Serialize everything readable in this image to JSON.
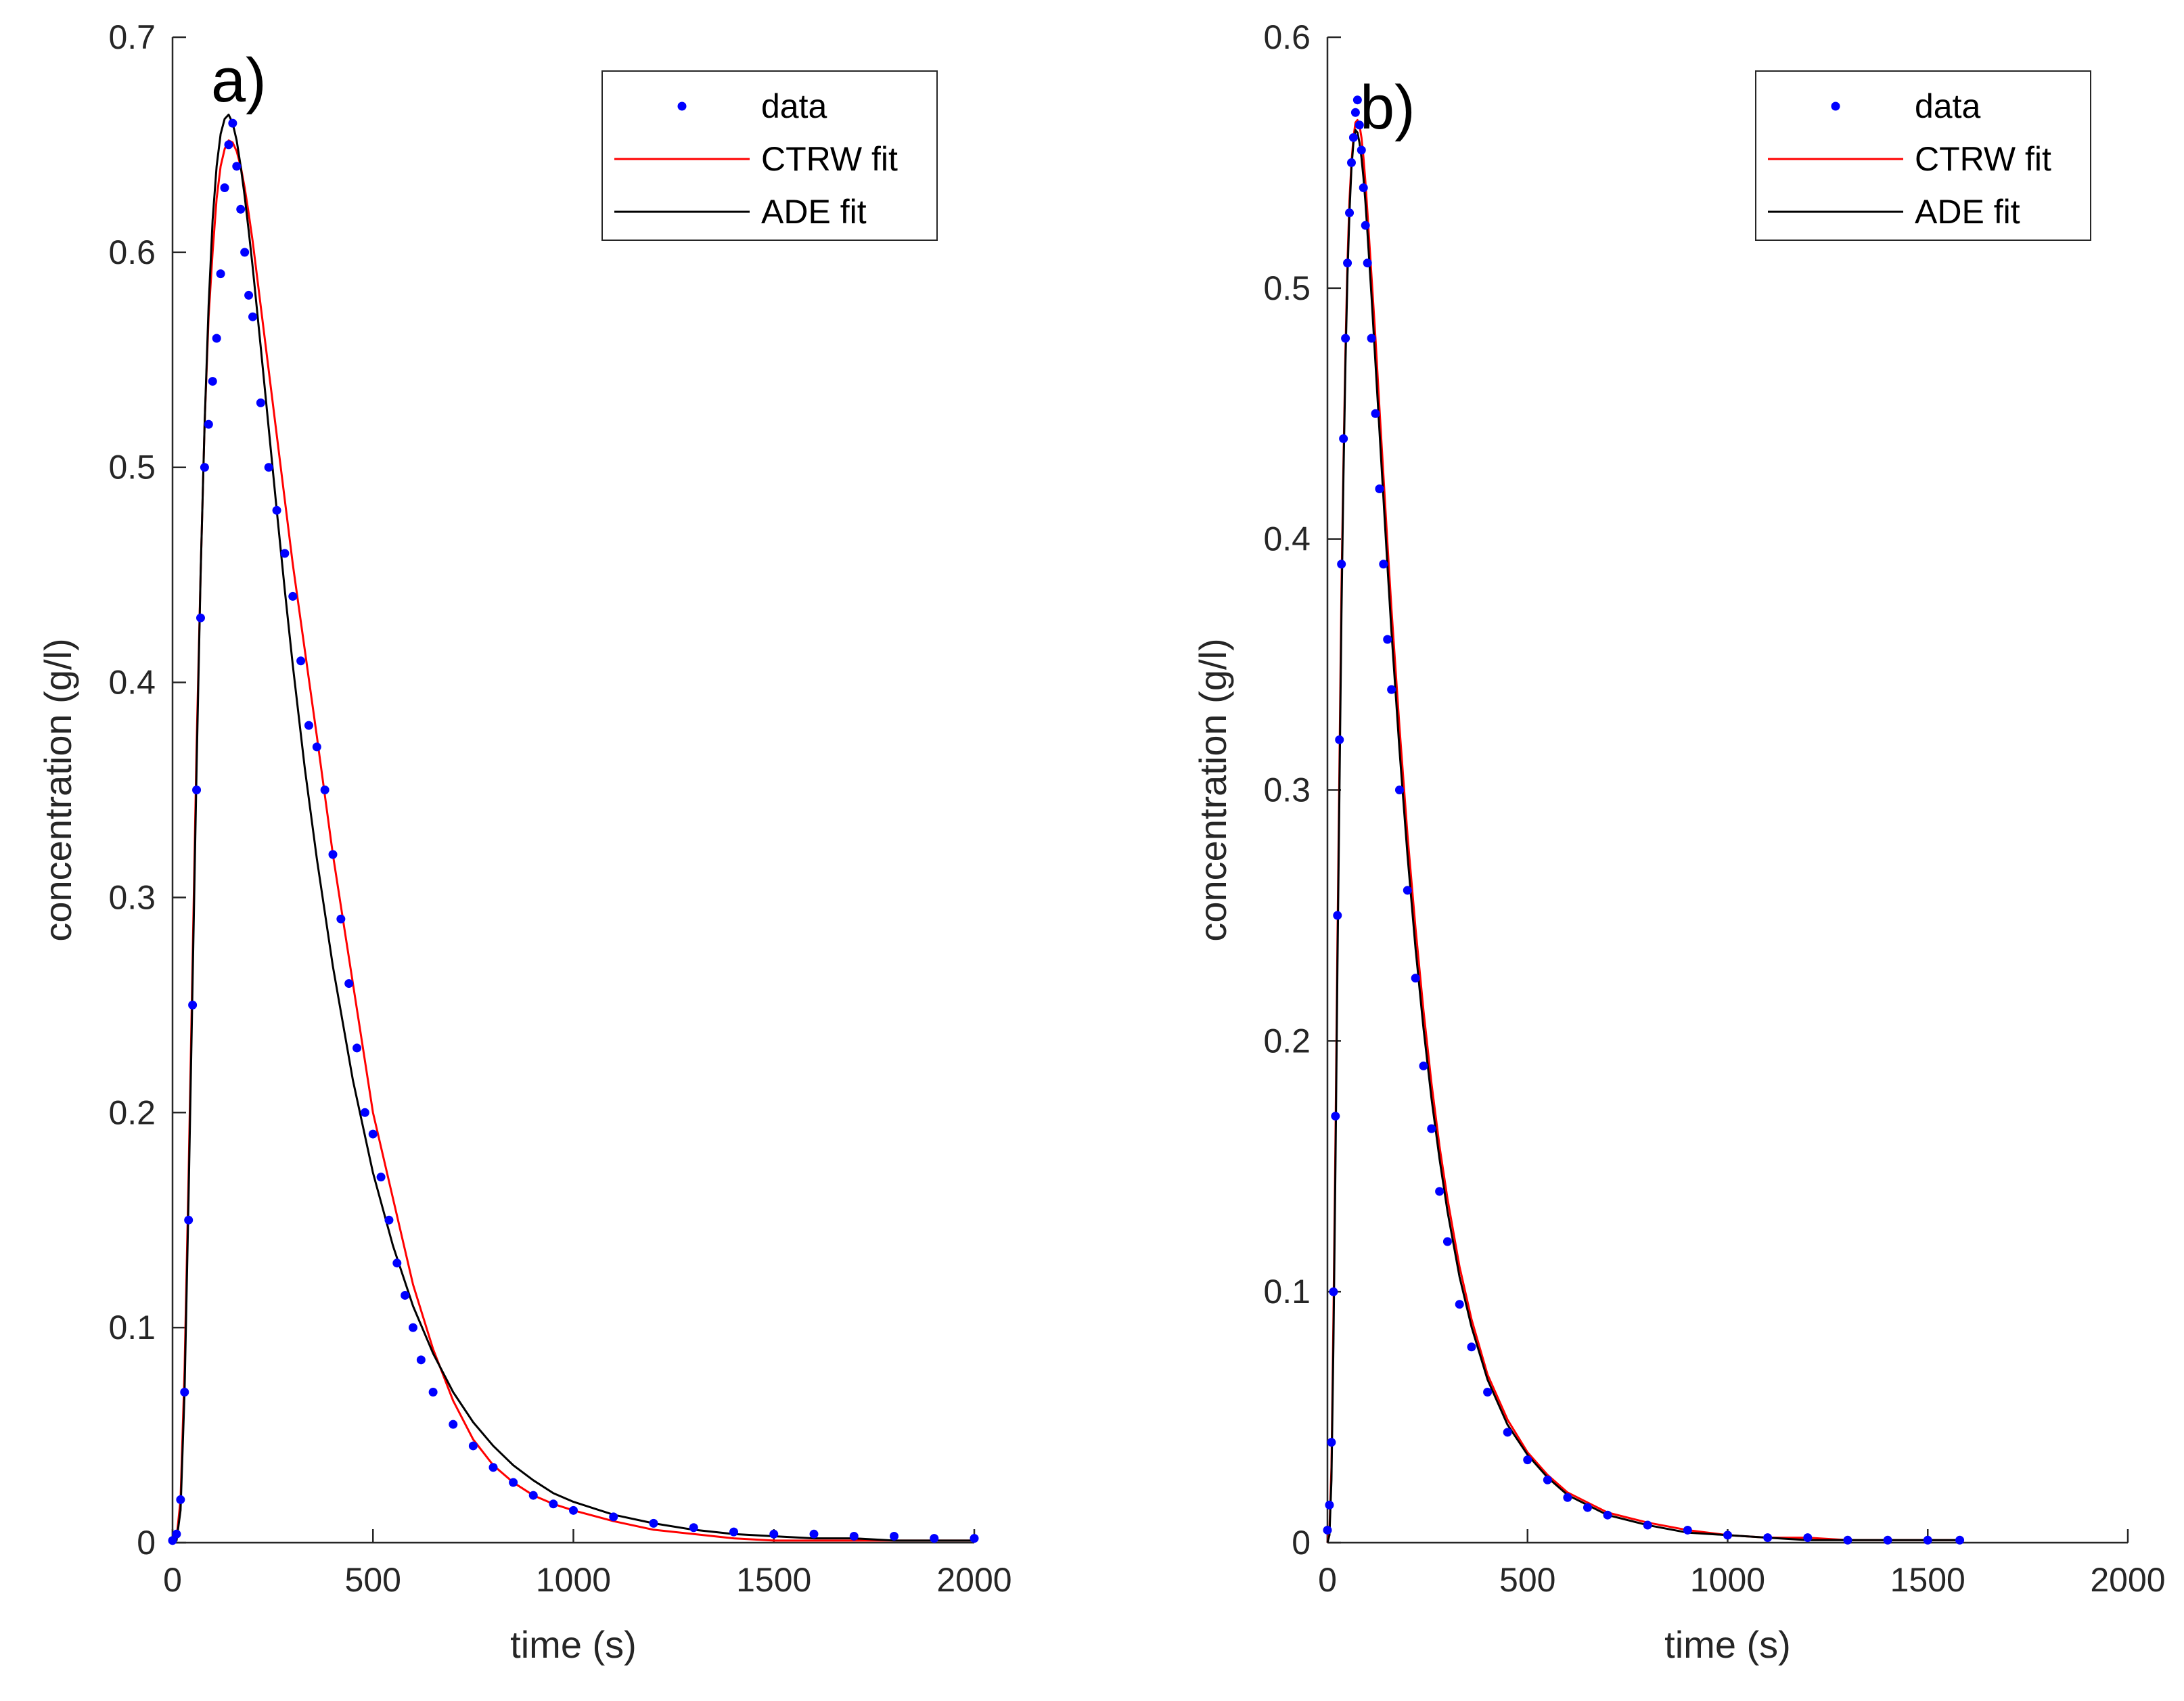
{
  "chart_data": [
    {
      "type": "line",
      "panel_label": "a)",
      "xlabel": "time (s)",
      "ylabel": "concentration (g/l)",
      "xlim": [
        0,
        2000
      ],
      "ylim": [
        0,
        0.7
      ],
      "xticks": [
        0,
        500,
        1000,
        1500,
        2000
      ],
      "xtick_labels": [
        "0",
        "500",
        "1000",
        "1500",
        "2000"
      ],
      "yticks": [
        0,
        0.1,
        0.2,
        0.3,
        0.4,
        0.5,
        0.6,
        0.7
      ],
      "ytick_labels": [
        "0",
        "0.1",
        "0.2",
        "0.3",
        "0.4",
        "0.5",
        "0.6",
        "0.7"
      ],
      "legend_position": "top-right",
      "series": [
        {
          "name": "data",
          "style": "dots",
          "color": "#0000ff",
          "x": [
            0,
            10,
            20,
            30,
            40,
            50,
            60,
            70,
            80,
            90,
            100,
            110,
            120,
            130,
            140,
            150,
            160,
            170,
            180,
            190,
            200,
            220,
            240,
            260,
            280,
            300,
            320,
            340,
            360,
            380,
            400,
            420,
            440,
            460,
            480,
            500,
            520,
            540,
            560,
            580,
            600,
            620,
            650,
            700,
            750,
            800,
            850,
            900,
            950,
            1000,
            1100,
            1200,
            1300,
            1400,
            1500,
            1600,
            1700,
            1800,
            1900,
            2000
          ],
          "y": [
            0.001,
            0.004,
            0.02,
            0.07,
            0.15,
            0.25,
            0.35,
            0.43,
            0.5,
            0.52,
            0.54,
            0.56,
            0.59,
            0.63,
            0.65,
            0.66,
            0.64,
            0.62,
            0.6,
            0.58,
            0.57,
            0.53,
            0.5,
            0.48,
            0.46,
            0.44,
            0.41,
            0.38,
            0.37,
            0.35,
            0.32,
            0.29,
            0.26,
            0.23,
            0.2,
            0.19,
            0.17,
            0.15,
            0.13,
            0.115,
            0.1,
            0.085,
            0.07,
            0.055,
            0.045,
            0.035,
            0.028,
            0.022,
            0.018,
            0.015,
            0.012,
            0.009,
            0.007,
            0.005,
            0.004,
            0.004,
            0.003,
            0.003,
            0.002,
            0.002
          ]
        },
        {
          "name": "CTRW fit",
          "style": "line",
          "color": "#ff0000",
          "x": [
            0,
            10,
            20,
            30,
            40,
            50,
            60,
            70,
            80,
            90,
            100,
            110,
            120,
            130,
            140,
            150,
            160,
            170,
            180,
            190,
            200,
            220,
            240,
            260,
            280,
            300,
            330,
            360,
            400,
            450,
            500,
            550,
            600,
            650,
            700,
            750,
            800,
            850,
            900,
            950,
            1000,
            1100,
            1200,
            1300,
            1400,
            1500,
            1600,
            1700,
            1800,
            1900,
            2000
          ],
          "y": [
            0,
            0.002,
            0.02,
            0.08,
            0.17,
            0.27,
            0.37,
            0.45,
            0.52,
            0.57,
            0.6,
            0.625,
            0.64,
            0.648,
            0.652,
            0.651,
            0.647,
            0.64,
            0.63,
            0.618,
            0.605,
            0.575,
            0.545,
            0.515,
            0.485,
            0.455,
            0.415,
            0.375,
            0.32,
            0.26,
            0.2,
            0.16,
            0.12,
            0.09,
            0.066,
            0.048,
            0.036,
            0.028,
            0.022,
            0.018,
            0.015,
            0.01,
            0.006,
            0.004,
            0.002,
            0.001,
            0.001,
            0.001,
            0.001,
            0.001,
            0.001
          ]
        },
        {
          "name": "ADE fit",
          "style": "line",
          "color": "#000000",
          "x": [
            0,
            10,
            20,
            30,
            40,
            50,
            60,
            70,
            80,
            90,
            100,
            110,
            120,
            130,
            140,
            150,
            160,
            170,
            180,
            190,
            200,
            220,
            240,
            260,
            280,
            300,
            330,
            360,
            400,
            450,
            500,
            550,
            600,
            650,
            700,
            750,
            800,
            850,
            900,
            950,
            1000,
            1100,
            1200,
            1300,
            1400,
            1500,
            1600,
            1700,
            1800,
            1900,
            2000
          ],
          "y": [
            0,
            0.001,
            0.015,
            0.07,
            0.16,
            0.26,
            0.36,
            0.45,
            0.52,
            0.575,
            0.615,
            0.64,
            0.655,
            0.662,
            0.664,
            0.66,
            0.652,
            0.64,
            0.626,
            0.61,
            0.593,
            0.556,
            0.518,
            0.48,
            0.443,
            0.408,
            0.36,
            0.318,
            0.268,
            0.215,
            0.172,
            0.138,
            0.11,
            0.088,
            0.07,
            0.056,
            0.045,
            0.036,
            0.029,
            0.023,
            0.019,
            0.013,
            0.009,
            0.006,
            0.004,
            0.003,
            0.002,
            0.002,
            0.001,
            0.001,
            0.001
          ]
        }
      ]
    },
    {
      "type": "line",
      "panel_label": "b)",
      "xlabel": "time (s)",
      "ylabel": "concentration (g/l)",
      "xlim": [
        0,
        2000
      ],
      "ylim": [
        0,
        0.6
      ],
      "xticks": [
        0,
        500,
        1000,
        1500,
        2000
      ],
      "xtick_labels": [
        "0",
        "500",
        "1000",
        "1500",
        "2000"
      ],
      "yticks": [
        0,
        0.1,
        0.2,
        0.3,
        0.4,
        0.5,
        0.6
      ],
      "ytick_labels": [
        "0",
        "0.1",
        "0.2",
        "0.3",
        "0.4",
        "0.5",
        "0.6"
      ],
      "legend_position": "top-right",
      "series": [
        {
          "name": "data",
          "style": "dots",
          "color": "#0000ff",
          "x": [
            0,
            5,
            10,
            15,
            20,
            25,
            30,
            35,
            40,
            45,
            50,
            55,
            60,
            65,
            70,
            75,
            80,
            85,
            90,
            95,
            100,
            110,
            120,
            130,
            140,
            150,
            160,
            180,
            200,
            220,
            240,
            260,
            280,
            300,
            330,
            360,
            400,
            450,
            500,
            550,
            600,
            650,
            700,
            800,
            900,
            1000,
            1100,
            1200,
            1300,
            1400,
            1500,
            1580
          ],
          "y": [
            0.005,
            0.015,
            0.04,
            0.1,
            0.17,
            0.25,
            0.32,
            0.39,
            0.44,
            0.48,
            0.51,
            0.53,
            0.55,
            0.56,
            0.57,
            0.575,
            0.565,
            0.555,
            0.54,
            0.525,
            0.51,
            0.48,
            0.45,
            0.42,
            0.39,
            0.36,
            0.34,
            0.3,
            0.26,
            0.225,
            0.19,
            0.165,
            0.14,
            0.12,
            0.095,
            0.078,
            0.06,
            0.044,
            0.033,
            0.025,
            0.018,
            0.014,
            0.011,
            0.007,
            0.005,
            0.003,
            0.002,
            0.002,
            0.001,
            0.001,
            0.001,
            0.001
          ]
        },
        {
          "name": "CTRW fit",
          "style": "line",
          "color": "#ff0000",
          "x": [
            0,
            5,
            10,
            15,
            20,
            25,
            30,
            35,
            40,
            45,
            50,
            55,
            60,
            65,
            70,
            75,
            80,
            85,
            90,
            95,
            100,
            110,
            120,
            130,
            140,
            150,
            160,
            180,
            200,
            220,
            240,
            260,
            280,
            300,
            330,
            360,
            400,
            450,
            500,
            550,
            600,
            650,
            700,
            800,
            900,
            1000,
            1100,
            1200,
            1300,
            1400,
            1500,
            1580
          ],
          "y": [
            0,
            0.005,
            0.03,
            0.09,
            0.16,
            0.24,
            0.31,
            0.38,
            0.43,
            0.475,
            0.51,
            0.535,
            0.55,
            0.56,
            0.566,
            0.567,
            0.565,
            0.56,
            0.552,
            0.542,
            0.53,
            0.505,
            0.48,
            0.452,
            0.425,
            0.398,
            0.372,
            0.325,
            0.282,
            0.245,
            0.212,
            0.183,
            0.158,
            0.137,
            0.11,
            0.089,
            0.067,
            0.049,
            0.036,
            0.027,
            0.02,
            0.016,
            0.012,
            0.008,
            0.005,
            0.003,
            0.002,
            0.002,
            0.001,
            0.001,
            0.001,
            0.001
          ]
        },
        {
          "name": "ADE fit",
          "style": "line",
          "color": "#000000",
          "x": [
            0,
            5,
            10,
            15,
            20,
            25,
            30,
            35,
            40,
            45,
            50,
            55,
            60,
            65,
            70,
            75,
            80,
            85,
            90,
            95,
            100,
            110,
            120,
            130,
            140,
            150,
            160,
            180,
            200,
            220,
            240,
            260,
            280,
            300,
            330,
            360,
            400,
            450,
            500,
            550,
            600,
            650,
            700,
            800,
            900,
            1000,
            1100,
            1200,
            1300,
            1400,
            1500,
            1580
          ],
          "y": [
            0,
            0.003,
            0.025,
            0.08,
            0.15,
            0.23,
            0.3,
            0.37,
            0.425,
            0.47,
            0.505,
            0.53,
            0.548,
            0.558,
            0.563,
            0.562,
            0.558,
            0.552,
            0.544,
            0.534,
            0.522,
            0.497,
            0.47,
            0.443,
            0.416,
            0.389,
            0.363,
            0.316,
            0.274,
            0.237,
            0.205,
            0.177,
            0.153,
            0.132,
            0.106,
            0.086,
            0.065,
            0.047,
            0.035,
            0.026,
            0.019,
            0.015,
            0.011,
            0.007,
            0.004,
            0.003,
            0.002,
            0.001,
            0.001,
            0.001,
            0.001,
            0.001
          ]
        }
      ]
    }
  ]
}
